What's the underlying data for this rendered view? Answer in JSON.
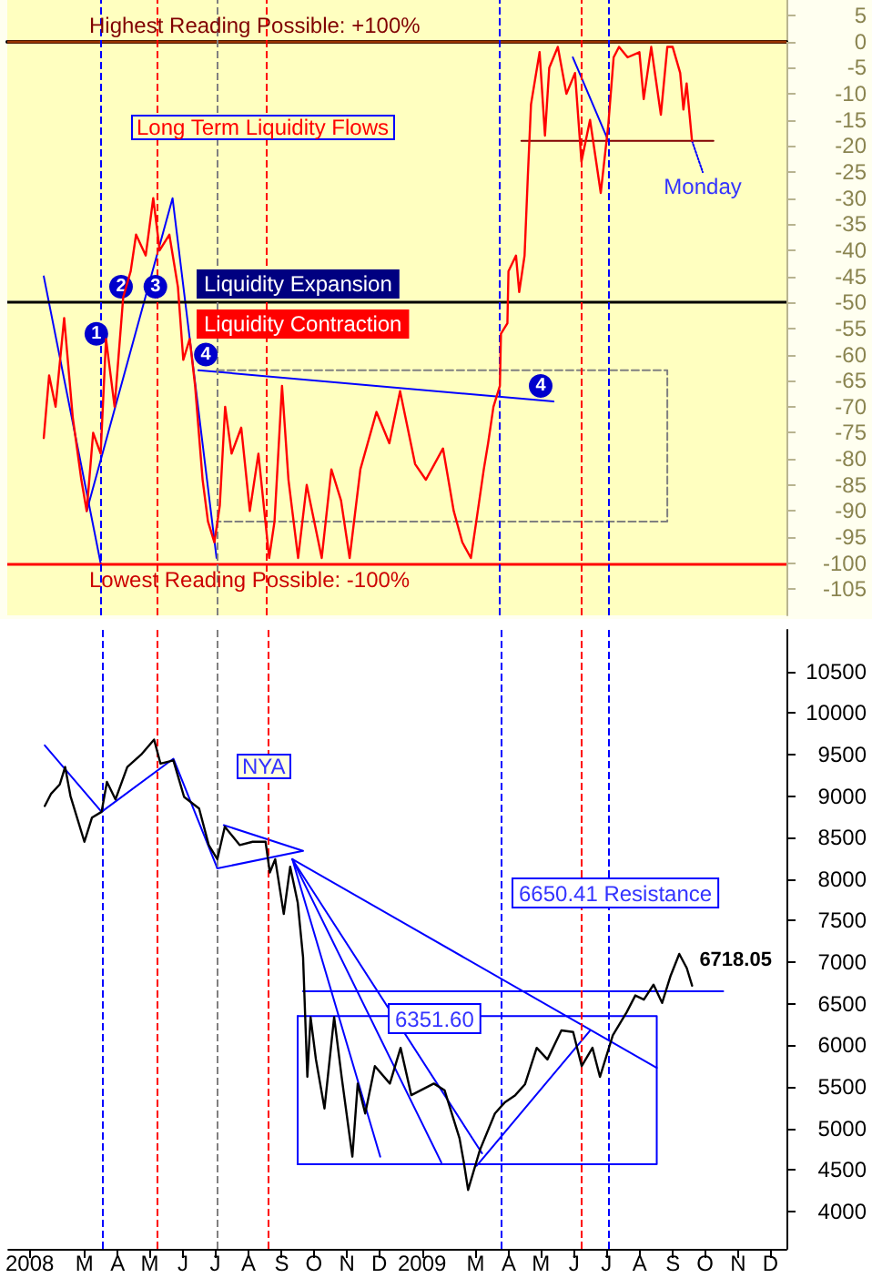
{
  "chart_data": [
    {
      "type": "line",
      "title": "Long Term Liquidity Flows",
      "xlim": [
        "2008-01-05",
        "2009-12-31"
      ],
      "ylim": [
        -110,
        8
      ],
      "yticks": [
        5,
        0,
        -5,
        -10,
        -15,
        -20,
        -25,
        -30,
        -35,
        -40,
        -45,
        -50,
        -55,
        -60,
        -65,
        -70,
        -75,
        -80,
        -85,
        -90,
        -95,
        -100,
        -105
      ],
      "tick_labels": "y",
      "grid": false,
      "marker": "none",
      "ref_lines": [
        {
          "axis": "y",
          "value": 0,
          "label": "Highest Reading Possible: +100%",
          "color": "#993300",
          "line_style": "solid"
        },
        {
          "axis": "y",
          "value": -100,
          "label": "Lowest Reading Possible: -100%",
          "color": "#ff0000",
          "line_style": "solid"
        },
        {
          "axis": "y",
          "value": -50,
          "color": "#000000",
          "line_style": "solid"
        },
        {
          "axis": "x",
          "value": "2008-04-01",
          "color": "#0000ff",
          "line_style": "dashed"
        },
        {
          "axis": "x",
          "value": "2008-05-23",
          "color": "#ff0000",
          "line_style": "dashed"
        },
        {
          "axis": "x",
          "value": "2008-07-18",
          "color": "#808080",
          "line_style": "dashed"
        },
        {
          "axis": "x",
          "value": "2008-09-03",
          "color": "#ff0000",
          "line_style": "dashed"
        },
        {
          "axis": "x",
          "value": "2009-04-08",
          "color": "#0000ff",
          "line_style": "dashed"
        },
        {
          "axis": "x",
          "value": "2009-06-22",
          "color": "#ff0000",
          "line_style": "dashed"
        },
        {
          "axis": "x",
          "value": "2009-07-18",
          "color": "#0000ff",
          "line_style": "dashed"
        }
      ],
      "annotations": [
        "Liquidity Expansion",
        "Liquidity Contraction",
        {
          "text": "1",
          "x": "2008-03-28",
          "y": -56
        },
        {
          "text": "2",
          "x": "2008-04-20",
          "y": -47
        },
        {
          "text": "3",
          "x": "2008-05-22",
          "y": -47
        },
        {
          "text": "4",
          "x": "2008-07-08",
          "y": -60
        },
        {
          "text": "4",
          "x": "2009-05-16",
          "y": -66
        },
        {
          "text": "Monday",
          "x": "2009-10-14",
          "y": -25
        }
      ],
      "series": [
        {
          "color": "#ff0000",
          "x": [
            "2008-02-08",
            "2008-02-13",
            "2008-02-19",
            "2008-02-27",
            "2008-03-06",
            "2008-03-14",
            "2008-03-19",
            "2008-03-25",
            "2008-04-01",
            "2008-04-06",
            "2008-04-14",
            "2008-04-22",
            "2008-04-29",
            "2008-05-04",
            "2008-05-13",
            "2008-05-20",
            "2008-05-26",
            "2008-06-04",
            "2008-06-12",
            "2008-06-17",
            "2008-06-23",
            "2008-06-28",
            "2008-07-05",
            "2008-07-10",
            "2008-07-16",
            "2008-07-21",
            "2008-07-26",
            "2008-08-01",
            "2008-08-10",
            "2008-08-18",
            "2008-08-26",
            "2008-09-05",
            "2008-09-10",
            "2008-09-17",
            "2008-09-23",
            "2008-10-02",
            "2008-10-10",
            "2008-10-24",
            "2008-11-02",
            "2008-11-11",
            "2008-11-19",
            "2008-11-29",
            "2008-12-14",
            "2008-12-26",
            "2009-01-05",
            "2009-01-19",
            "2009-01-29",
            "2009-02-14",
            "2009-02-24",
            "2009-03-04",
            "2009-03-12",
            "2009-03-17",
            "2009-03-24",
            "2009-03-28",
            "2009-04-02",
            "2009-04-08",
            "2009-04-09",
            "2009-04-15",
            "2009-04-16",
            "2009-04-23",
            "2009-04-26",
            "2009-05-01",
            "2009-05-04",
            "2009-05-07",
            "2009-05-15",
            "2009-05-20",
            "2009-05-24",
            "2009-06-01",
            "2009-06-09",
            "2009-06-17",
            "2009-06-23",
            "2009-07-01",
            "2009-07-11",
            "2009-07-18",
            "2009-07-23",
            "2009-07-28",
            "2009-08-05",
            "2009-08-16",
            "2009-08-20",
            "2009-08-27",
            "2009-09-05",
            "2009-09-11",
            "2009-09-16",
            "2009-09-23",
            "2009-09-26",
            "2009-09-29",
            "2009-10-04"
          ],
          "values": [
            -76,
            -64,
            -70,
            -53,
            -72,
            -84,
            -90,
            -75,
            -79,
            -57,
            -70,
            -49,
            -44,
            -37,
            -41,
            -30,
            -40,
            -37,
            -47,
            -61,
            -57,
            -66,
            -84,
            -92,
            -96,
            -89,
            -70,
            -79,
            -74,
            -90,
            -79,
            -99,
            -92,
            -66,
            -84,
            -99,
            -85,
            -99,
            -82,
            -88,
            -99,
            -82,
            -71,
            -77,
            -67,
            -81,
            -84,
            -78,
            -90,
            -96,
            -99,
            -92,
            -82,
            -77,
            -70,
            -66,
            -56,
            -54,
            -44,
            -41,
            -48,
            -41,
            -26,
            -12,
            -2,
            -18,
            -5,
            -1,
            -10,
            -6,
            -23,
            -15,
            -29,
            -16,
            -3,
            -1,
            -3,
            -2,
            -11,
            -1,
            -14,
            -1,
            -1,
            -6,
            -13,
            -8,
            -19
          ]
        },
        {
          "color": "#0000ff",
          "x": [
            "2008-07-01",
            "2009-05-28"
          ],
          "values": [
            -63,
            -69
          ]
        },
        {
          "color": "#800000",
          "x": [
            "2009-04-28",
            "2009-10-24"
          ],
          "values": [
            -19,
            -19
          ]
        },
        {
          "color": "#0000ff",
          "x": [
            "2008-03-19",
            "2008-06-07",
            "2008-07-18"
          ],
          "values": [
            -90,
            -30,
            -99
          ]
        },
        {
          "color": "#0000ff",
          "x": [
            "2008-02-08",
            "2008-04-01"
          ],
          "values": [
            -45,
            -100
          ]
        },
        {
          "color": "#0000ff",
          "x": [
            "2009-06-15",
            "2009-07-18"
          ],
          "values": [
            -3,
            -19
          ]
        },
        {
          "color": "#0000ff",
          "line_style": "dotted",
          "x": [
            "2009-10-04",
            "2009-10-14"
          ],
          "values": [
            -19,
            -25
          ]
        },
        {
          "color": "#808080",
          "line_style": "dashed",
          "x": [
            "2008-07-18",
            "2009-09-11",
            "2009-09-11",
            "2008-07-18"
          ],
          "values": [
            -63,
            -63,
            -92,
            -92
          ]
        }
      ]
    },
    {
      "type": "line",
      "title": "NYA",
      "xlim": [
        "2008-01-05",
        "2009-12-31"
      ],
      "ylim": [
        3550,
        11000
      ],
      "yticks": [
        4000,
        4500,
        5000,
        5500,
        6000,
        6500,
        7000,
        7500,
        8000,
        8500,
        9000,
        9500,
        10000,
        10500
      ],
      "xticks": [
        {
          "value": "2008-01-25",
          "label": "2008"
        },
        {
          "value": "2008-03-16",
          "label": "M"
        },
        {
          "value": "2008-04-16",
          "label": "A"
        },
        {
          "value": "2008-05-16",
          "label": "M"
        },
        {
          "value": "2008-06-16",
          "label": "J"
        },
        {
          "value": "2008-07-16",
          "label": "J"
        },
        {
          "value": "2008-08-16",
          "label": "A"
        },
        {
          "value": "2008-09-16",
          "label": "S"
        },
        {
          "value": "2008-10-16",
          "label": "O"
        },
        {
          "value": "2008-11-16",
          "label": "N"
        },
        {
          "value": "2008-12-16",
          "label": "D"
        },
        {
          "value": "2009-01-25",
          "label": "2009"
        },
        {
          "value": "2009-03-16",
          "label": "M"
        },
        {
          "value": "2009-04-16",
          "label": "A"
        },
        {
          "value": "2009-05-16",
          "label": "M"
        },
        {
          "value": "2009-06-16",
          "label": "J"
        },
        {
          "value": "2009-07-16",
          "label": "J"
        },
        {
          "value": "2009-08-16",
          "label": "A"
        },
        {
          "value": "2009-09-16",
          "label": "S"
        },
        {
          "value": "2009-10-16",
          "label": "O"
        },
        {
          "value": "2009-11-16",
          "label": "N"
        },
        {
          "value": "2009-12-16",
          "label": "D"
        }
      ],
      "grid": false,
      "marker": "none",
      "ref_lines": [
        {
          "axis": "x",
          "value": "2008-04-01",
          "color": "#0000ff",
          "line_style": "dashed"
        },
        {
          "axis": "x",
          "value": "2008-05-23",
          "color": "#ff0000",
          "line_style": "dashed"
        },
        {
          "axis": "x",
          "value": "2008-07-18",
          "color": "#808080",
          "line_style": "dashed"
        },
        {
          "axis": "x",
          "value": "2008-09-03",
          "color": "#ff0000",
          "line_style": "dashed"
        },
        {
          "axis": "x",
          "value": "2009-04-08",
          "color": "#0000ff",
          "line_style": "dashed"
        },
        {
          "axis": "x",
          "value": "2009-06-22",
          "color": "#ff0000",
          "line_style": "dashed"
        },
        {
          "axis": "x",
          "value": "2009-07-18",
          "color": "#0000ff",
          "line_style": "dashed"
        }
      ],
      "annotations": [
        "6351.60",
        "6650.41 Resistance"
      ],
      "series": [
        {
          "color": "#000000",
          "x": [
            "2008-02-08",
            "2008-02-14",
            "2008-02-22",
            "2008-02-27",
            "2008-03-03",
            "2008-03-16",
            "2008-03-23",
            "2008-04-01",
            "2008-04-06",
            "2008-04-14",
            "2008-04-25",
            "2008-05-08",
            "2008-05-20",
            "2008-05-26",
            "2008-06-07",
            "2008-06-17",
            "2008-07-01",
            "2008-07-10",
            "2008-07-18",
            "2008-07-25",
            "2008-08-08",
            "2008-08-20",
            "2008-09-01",
            "2008-09-05",
            "2008-09-10",
            "2008-09-18",
            "2008-09-24",
            "2008-10-01",
            "2008-10-06",
            "2008-10-10",
            "2008-10-13",
            "2008-10-18",
            "2008-10-26",
            "2008-11-04",
            "2008-11-11",
            "2008-11-21",
            "2008-11-26",
            "2008-12-03",
            "2008-12-12",
            "2008-12-26",
            "2009-01-05",
            "2009-01-15",
            "2009-02-05",
            "2009-02-15",
            "2009-03-01",
            "2009-03-05",
            "2009-03-09",
            "2009-03-20",
            "2009-04-03",
            "2009-04-12",
            "2009-04-22",
            "2009-05-01",
            "2009-05-12",
            "2009-05-22",
            "2009-06-04",
            "2009-06-15",
            "2009-06-23",
            "2009-07-03",
            "2009-07-10",
            "2009-07-22",
            "2009-08-04",
            "2009-08-12",
            "2009-08-20",
            "2009-08-29",
            "2009-09-06",
            "2009-09-14",
            "2009-09-22",
            "2009-09-29",
            "2009-10-04"
          ],
          "values": [
            8880,
            9030,
            9140,
            9350,
            9000,
            8450,
            8740,
            8810,
            9170,
            8960,
            9350,
            9500,
            9680,
            9390,
            9430,
            8990,
            8850,
            8410,
            8240,
            8630,
            8410,
            8450,
            8450,
            8080,
            8240,
            7580,
            8150,
            7720,
            7060,
            5620,
            6340,
            5830,
            5240,
            6340,
            5620,
            4660,
            5540,
            5180,
            5750,
            5540,
            5970,
            5400,
            5540,
            5460,
            4880,
            4590,
            4260,
            4740,
            5180,
            5310,
            5400,
            5530,
            5970,
            5830,
            6180,
            6160,
            5750,
            5970,
            5620,
            6120,
            6400,
            6600,
            6550,
            6730,
            6510,
            6840,
            7100,
            6930,
            6718.05
          ],
          "value_labels": [
            null,
            null,
            null,
            null,
            null,
            null,
            null,
            null,
            null,
            null,
            null,
            null,
            null,
            null,
            null,
            null,
            null,
            null,
            null,
            null,
            null,
            null,
            null,
            null,
            null,
            null,
            null,
            null,
            null,
            null,
            null,
            null,
            null,
            null,
            null,
            null,
            null,
            null,
            null,
            null,
            null,
            null,
            null,
            null,
            null,
            null,
            null,
            null,
            null,
            null,
            null,
            null,
            null,
            null,
            null,
            null,
            null,
            null,
            null,
            null,
            null,
            null,
            null,
            null,
            null,
            null,
            null,
            null,
            "6718.05"
          ]
        },
        {
          "color": "#0000ff",
          "x": [
            "2008-02-08",
            "2008-04-01",
            "2008-06-07",
            "2008-07-18"
          ],
          "values": [
            9610,
            8810,
            9450,
            8130
          ]
        },
        {
          "color": "#0000ff",
          "x": [
            "2008-07-18",
            "2008-10-06",
            "2008-07-24"
          ],
          "values": [
            8130,
            8340,
            8650
          ]
        },
        {
          "color": "#0000ff",
          "x": [
            "2008-09-26",
            "2008-12-17"
          ],
          "values": [
            8240,
            4660
          ]
        },
        {
          "color": "#0000ff",
          "x": [
            "2008-09-26",
            "2009-02-12"
          ],
          "values": [
            8240,
            4590
          ]
        },
        {
          "color": "#0000ff",
          "x": [
            "2008-09-26",
            "2009-03-22"
          ],
          "values": [
            8240,
            4700
          ]
        },
        {
          "color": "#0000ff",
          "x": [
            "2008-09-26",
            "2009-09-01"
          ],
          "values": [
            8240,
            5730
          ]
        },
        {
          "color": "#0000ff",
          "x": [
            "2009-03-17",
            "2009-07-01"
          ],
          "values": [
            4550,
            6180
          ]
        },
        {
          "color": "#0000ff",
          "x": [
            "2008-10-06",
            "2009-11-02"
          ],
          "values": [
            6650.41,
            6650.41
          ]
        },
        {
          "color": "#0000ff",
          "x": [
            "2008-10-01",
            "2009-09-01",
            "2009-09-01",
            "2008-10-01"
          ],
          "values": [
            6351.6,
            6351.6,
            4570,
            4570
          ]
        },
        {
          "color": "#0000ff",
          "x": [
            "2008-10-01",
            "2008-10-01"
          ],
          "values": [
            4570,
            6351.6
          ]
        }
      ]
    }
  ]
}
